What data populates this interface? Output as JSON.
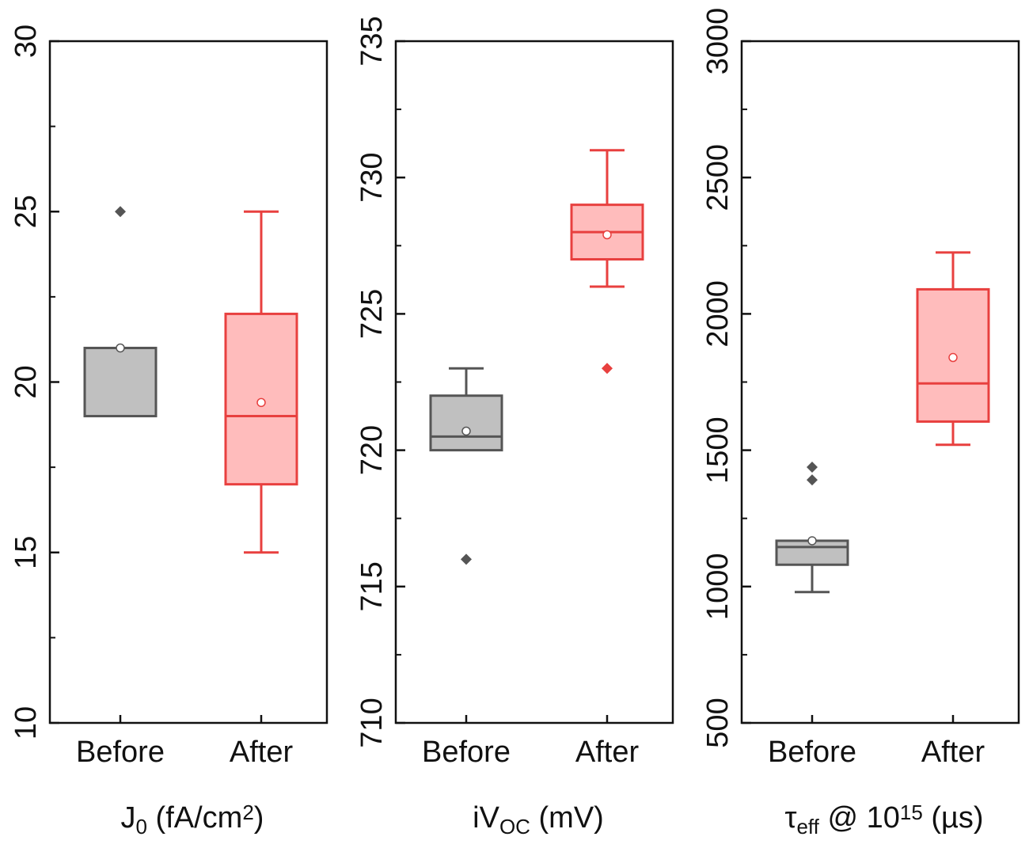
{
  "chart_data": [
    {
      "type": "box",
      "xlabel_parts": [
        {
          "text": "J"
        },
        {
          "text": "0",
          "shift": "sub"
        },
        {
          "text": " (fA/cm"
        },
        {
          "text": "2",
          "shift": "sup"
        },
        {
          "text": ")"
        }
      ],
      "categories": [
        "Before",
        "After"
      ],
      "ylim": [
        10,
        30
      ],
      "yticks": [
        10,
        15,
        20,
        25,
        30
      ],
      "minor_yticks": [
        12.5,
        17.5,
        22.5,
        27.5
      ],
      "boxes": [
        {
          "color": "#555555",
          "fill": "#c0c0c0",
          "min": 19,
          "q1": 19,
          "median": 21,
          "q3": 21,
          "max": 21,
          "mean": 21,
          "outliers": [
            25
          ]
        },
        {
          "color": "#e8403f",
          "fill": "#ffbcbc",
          "min": 15,
          "q1": 17,
          "median": 19,
          "q3": 22,
          "max": 25,
          "mean": 19.4,
          "outliers": []
        }
      ]
    },
    {
      "type": "box",
      "xlabel_parts": [
        {
          "text": "iV"
        },
        {
          "text": "OC",
          "shift": "sub"
        },
        {
          "text": " (mV)"
        }
      ],
      "categories": [
        "Before",
        "After"
      ],
      "ylim": [
        710,
        735
      ],
      "yticks": [
        710,
        715,
        720,
        725,
        730,
        735
      ],
      "minor_yticks": [
        712.5,
        717.5,
        722.5,
        727.5,
        732.5
      ],
      "boxes": [
        {
          "color": "#555555",
          "fill": "#c0c0c0",
          "min": 720,
          "q1": 720,
          "median": 720.5,
          "q3": 722,
          "max": 723,
          "mean": 720.7,
          "outliers": [
            716
          ]
        },
        {
          "color": "#e8403f",
          "fill": "#ffbcbc",
          "min": 726,
          "q1": 727,
          "median": 728,
          "q3": 729,
          "max": 731,
          "mean": 727.9,
          "outliers": [
            723
          ]
        }
      ]
    },
    {
      "type": "box",
      "xlabel_parts": [
        {
          "text": "τ"
        },
        {
          "text": "eff",
          "shift": "sub"
        },
        {
          "text": " @ 10"
        },
        {
          "text": "15",
          "shift": "sup"
        },
        {
          "text": " (µs)"
        }
      ],
      "categories": [
        "Before",
        "After"
      ],
      "ylim": [
        500,
        3000
      ],
      "yticks": [
        500,
        1000,
        1500,
        2000,
        2500,
        3000
      ],
      "minor_yticks": [
        750,
        1250,
        1750,
        2250,
        2750
      ],
      "boxes": [
        {
          "color": "#555555",
          "fill": "#c0c0c0",
          "min": 980,
          "q1": 1080,
          "median": 1145,
          "q3": 1168,
          "max": 1168,
          "mean": 1168,
          "outliers": [
            1438,
            1391
          ]
        },
        {
          "color": "#e8403f",
          "fill": "#ffbcbc",
          "min": 1520,
          "q1": 1605,
          "median": 1745,
          "q3": 2090,
          "max": 2225,
          "mean": 1840,
          "outliers": []
        }
      ]
    }
  ]
}
